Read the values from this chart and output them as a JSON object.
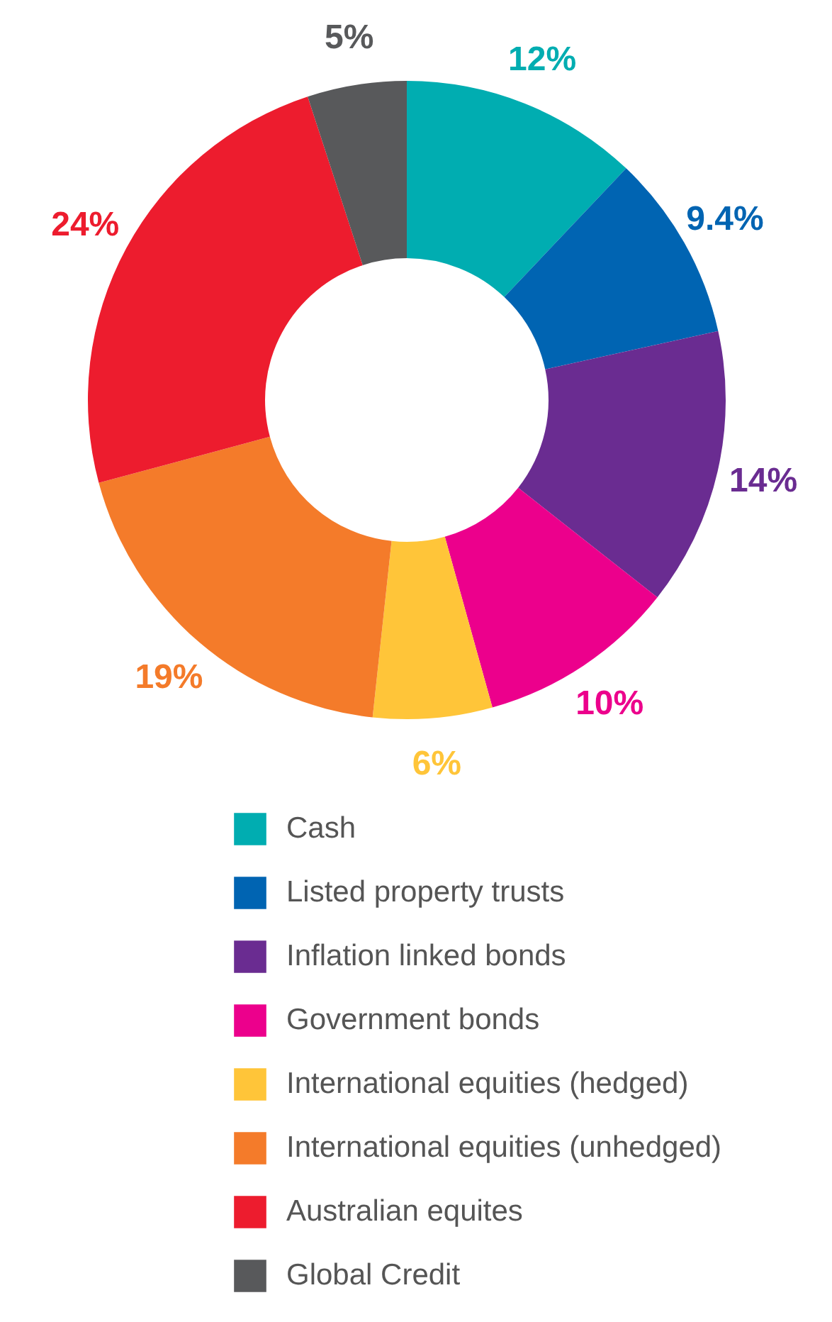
{
  "chart_data": {
    "type": "donut",
    "categories": [
      "Cash",
      "Listed property trusts",
      "Inflation linked bonds",
      "Government bonds",
      "International equities (hedged)",
      "International equities (unhedged)",
      "Australian equites",
      "Global Credit"
    ],
    "values": [
      12,
      9.4,
      14,
      10,
      6,
      19,
      24,
      5
    ],
    "colors": [
      "#00adb1",
      "#0064b2",
      "#6a2c91",
      "#ec008c",
      "#ffc539",
      "#f47b2a",
      "#ed1c2e",
      "#58595b"
    ],
    "value_labels": [
      "12%",
      "9.4%",
      "14%",
      "10%",
      "6%",
      "19%",
      "24%",
      "5%"
    ],
    "legend": "bottom"
  }
}
